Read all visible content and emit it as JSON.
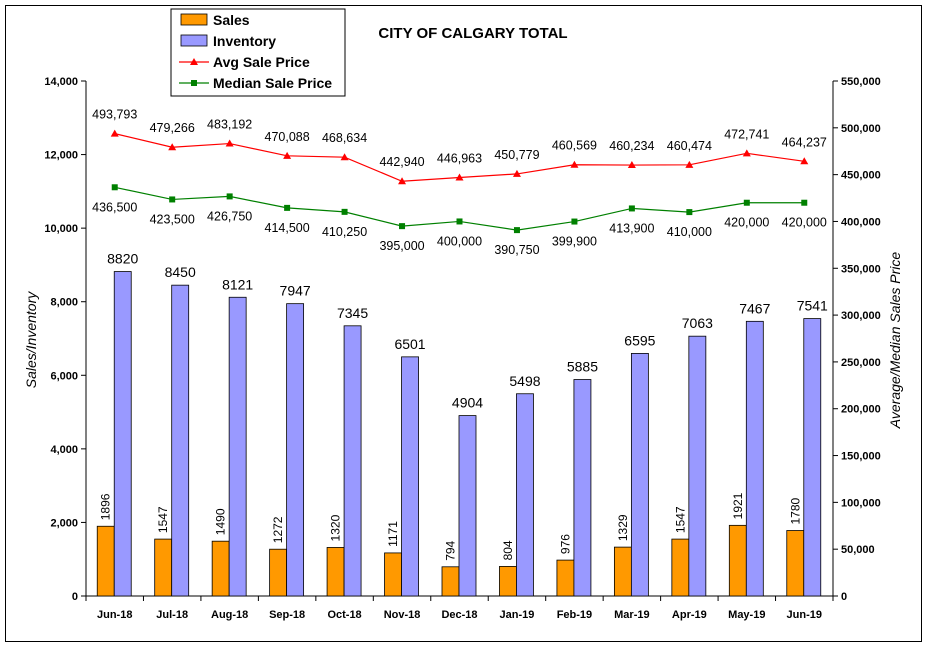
{
  "chart_data": {
    "type": "bar",
    "title": "CITY OF CALGARY TOTAL",
    "ylabel": "Sales/Inventory",
    "y2label": "Average/Median Sales Price",
    "categories": [
      "Jun-18",
      "Jul-18",
      "Aug-18",
      "Sep-18",
      "Oct-18",
      "Nov-18",
      "Dec-18",
      "Jan-19",
      "Feb-19",
      "Mar-19",
      "Apr-19",
      "May-19",
      "Jun-19"
    ],
    "ylim": [
      0,
      14000
    ],
    "y_ticks": [
      "0",
      "2,000",
      "4,000",
      "6,000",
      "8,000",
      "10,000",
      "12,000",
      "14,000"
    ],
    "y2lim": [
      0,
      550000
    ],
    "y2_ticks": [
      "0",
      "50,000",
      "100,000",
      "150,000",
      "200,000",
      "250,000",
      "300,000",
      "350,000",
      "400,000",
      "450,000",
      "500,000",
      "550,000"
    ],
    "grid": false,
    "legend_position": "top-left",
    "series": [
      {
        "name": "Sales",
        "kind": "bar",
        "axis": "left",
        "color": "#ff9900",
        "values": [
          1896,
          1547,
          1490,
          1272,
          1320,
          1171,
          794,
          804,
          976,
          1329,
          1547,
          1921,
          1780
        ],
        "labels": [
          "1896",
          "1547",
          "1490",
          "1272",
          "1320",
          "1171",
          "794",
          "804",
          "976",
          "1329",
          "1547",
          "1921",
          "1780"
        ]
      },
      {
        "name": "Inventory",
        "kind": "bar",
        "axis": "left",
        "color": "#9999ff",
        "values": [
          8820,
          8450,
          8121,
          7947,
          7345,
          6501,
          4904,
          5498,
          5885,
          6595,
          7063,
          7467,
          7541
        ],
        "labels": [
          "8820",
          "8450",
          "8121",
          "7947",
          "7345",
          "6501",
          "4904",
          "5498",
          "5885",
          "6595",
          "7063",
          "7467",
          "7541"
        ]
      },
      {
        "name": "Avg Sale Price",
        "kind": "line",
        "axis": "right",
        "color": "#ff0000",
        "marker": "triangle",
        "values": [
          493793,
          479266,
          483192,
          470088,
          468634,
          442940,
          446963,
          450779,
          460569,
          460234,
          460474,
          472741,
          464237
        ],
        "labels": [
          "493,793",
          "479,266",
          "483,192",
          "470,088",
          "468,634",
          "442,940",
          "446,963",
          "450,779",
          "460,569",
          "460,234",
          "460,474",
          "472,741",
          "464,237"
        ]
      },
      {
        "name": "Median Sale Price",
        "kind": "line",
        "axis": "right",
        "color": "#008000",
        "marker": "square",
        "values": [
          436500,
          423500,
          426750,
          414500,
          410250,
          395000,
          400000,
          390750,
          399900,
          413900,
          410000,
          420000,
          420000
        ],
        "labels": [
          "436,500",
          "423,500",
          "426,750",
          "414,500",
          "410,250",
          "395,000",
          "400,000",
          "390,750",
          "399,900",
          "413,900",
          "410,000",
          "420,000",
          "420,000"
        ]
      }
    ]
  }
}
